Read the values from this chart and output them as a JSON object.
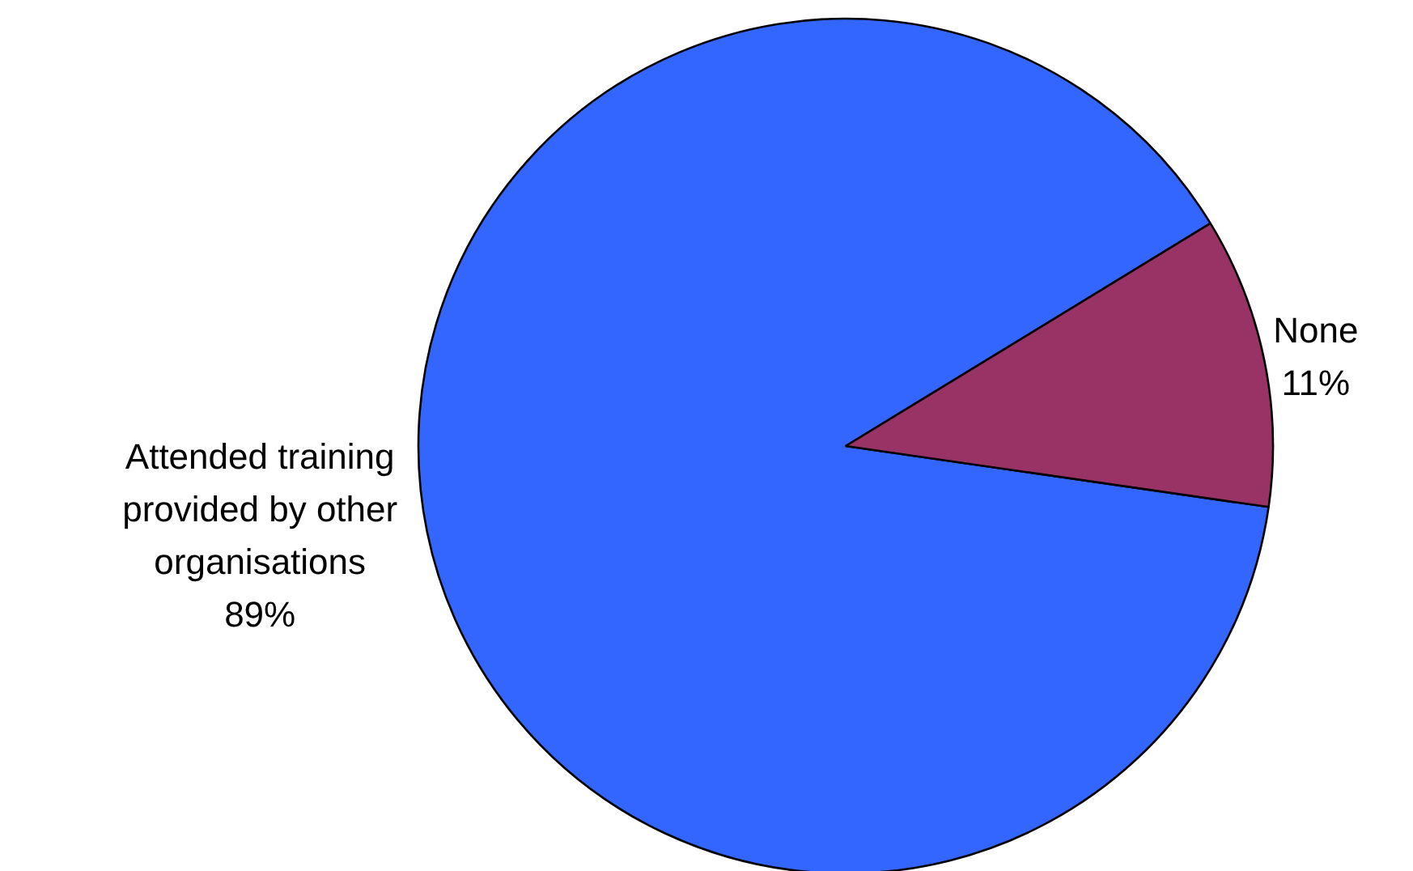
{
  "chart_data": {
    "type": "pie",
    "categories": [
      "Attended training provided by other organisations",
      "None"
    ],
    "values": [
      89,
      11
    ],
    "colors": [
      "#3366ff",
      "#993366"
    ],
    "value_labels": [
      "89%",
      "11%"
    ]
  }
}
